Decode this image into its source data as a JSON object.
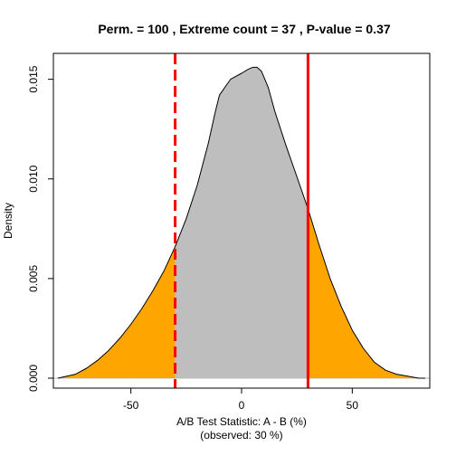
{
  "chart_data": {
    "type": "area",
    "title": "Perm. = 100 , Extreme count = 37 , P-value = 0.37",
    "xlabel": "A/B Test Statistic: A - B (%)",
    "xlabel_sub": "(observed: 30 %)",
    "ylabel": "Density",
    "xlim": [
      -85,
      85
    ],
    "ylim": [
      -0.0005,
      0.0163
    ],
    "x_ticks": [
      -50,
      0,
      50
    ],
    "x_tick_labels": [
      "-50",
      "0",
      "50"
    ],
    "y_ticks": [
      0.0,
      0.005,
      0.01,
      0.015
    ],
    "y_tick_labels": [
      "0.000",
      "0.005",
      "0.010",
      "0.015"
    ],
    "grid": false,
    "observed": 30,
    "mirror_observed": -30,
    "density": {
      "x": [
        -83,
        -75,
        -70,
        -65,
        -60,
        -55,
        -50,
        -45,
        -40,
        -35,
        -30,
        -25,
        -20,
        -15,
        -12,
        -10,
        -5,
        0,
        3,
        5,
        7,
        9,
        12,
        15,
        20,
        25,
        30,
        35,
        40,
        45,
        50,
        55,
        60,
        65,
        70,
        75,
        80,
        83
      ],
      "y": [
        0.0,
        0.0002,
        0.0005,
        0.0009,
        0.0014,
        0.002,
        0.0027,
        0.0035,
        0.0044,
        0.0054,
        0.0066,
        0.008,
        0.0097,
        0.0118,
        0.0133,
        0.0142,
        0.015,
        0.0153,
        0.0155,
        0.0156,
        0.0156,
        0.0154,
        0.0146,
        0.0134,
        0.0117,
        0.0101,
        0.0085,
        0.0067,
        0.005,
        0.0036,
        0.0024,
        0.0015,
        0.0008,
        0.0004,
        0.0002,
        0.0001,
        0.0,
        0.0
      ]
    },
    "colors": {
      "tail_fill": "#FFA500",
      "center_fill": "#BEBEBE",
      "curve": "#000000",
      "observed_line": "#FF0000",
      "mirror_line": "#FF0000",
      "baseline": "#BEBEBE"
    }
  }
}
